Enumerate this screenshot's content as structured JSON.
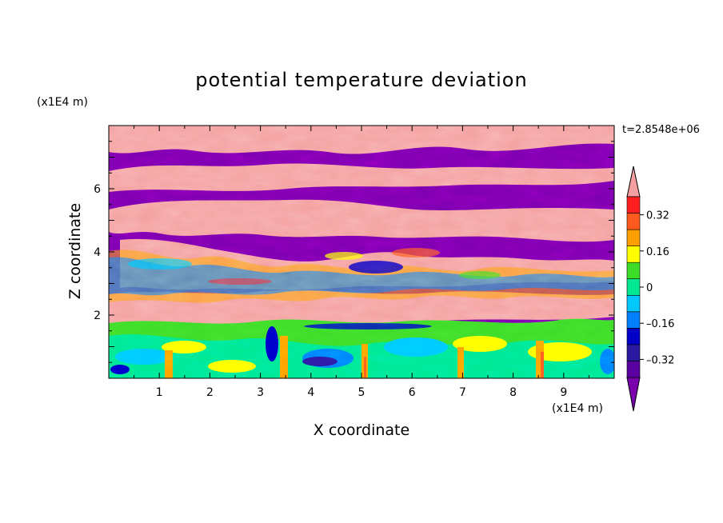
{
  "chart_data": {
    "type": "heatmap",
    "title": "potential temperature deviation",
    "xlabel": "X coordinate",
    "ylabel": "Z coordinate",
    "x_unit": "(x1E4 m)",
    "y_unit": "(x1E4 m)",
    "annotation": "t=2.8548e+06",
    "xlim": [
      0,
      10
    ],
    "ylim": [
      0,
      8
    ],
    "x_ticks": [
      "1",
      "2",
      "3",
      "4",
      "5",
      "6",
      "7",
      "8",
      "9"
    ],
    "y_ticks": [
      "2",
      "4",
      "6"
    ],
    "colorbar": {
      "levels": [
        -0.4,
        -0.32,
        -0.24,
        -0.16,
        -0.08,
        0,
        0.08,
        0.16,
        0.24,
        0.32,
        0.4
      ],
      "colors": [
        "#5a00a0",
        "#2a1aa0",
        "#0000c8",
        "#0080ff",
        "#00c8ff",
        "#00e890",
        "#3cdc28",
        "#ffff00",
        "#ffa000",
        "#ff5a1e",
        "#ff1e1e"
      ],
      "under_color": "#7a00ae",
      "over_color": "#f5a0a0",
      "tick_labels": [
        "0.32",
        "0.16",
        "0",
        "–0.16",
        "–0.32"
      ]
    },
    "grid": false,
    "legend_placement": "right"
  }
}
